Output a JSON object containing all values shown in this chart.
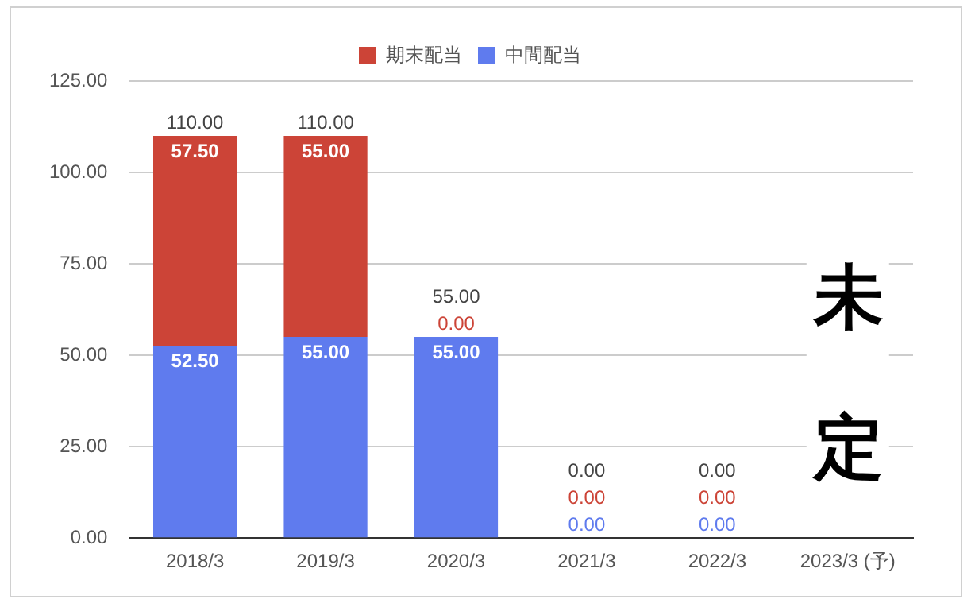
{
  "chart_data": {
    "type": "bar",
    "stacked": true,
    "categories": [
      "2018/3",
      "2019/3",
      "2020/3",
      "2021/3",
      "2022/3",
      "2023/3 (予)"
    ],
    "series": [
      {
        "name": "中間配当",
        "color": "#5f7bee",
        "values": [
          52.5,
          55,
          55,
          0,
          0,
          null
        ],
        "value_labels": [
          "52.50",
          "55.00",
          "55.00",
          "0.00",
          "0.00",
          null
        ]
      },
      {
        "name": "期末配当",
        "color": "#cc4437",
        "values": [
          57.5,
          55,
          0,
          0,
          0,
          null
        ],
        "value_labels": [
          "57.50",
          "55.00",
          "0.00",
          "0.00",
          "0.00",
          null
        ]
      }
    ],
    "totals": [
      "110.00",
      "110.00",
      "55.00",
      "0.00",
      "0.00",
      null
    ],
    "ylim": [
      0,
      125
    ],
    "yticks": [
      {
        "value": 0,
        "label": "0.00"
      },
      {
        "value": 25,
        "label": "25.00"
      },
      {
        "value": 50,
        "label": "50.00"
      },
      {
        "value": 75,
        "label": "75.00"
      },
      {
        "value": 100,
        "label": "100.00"
      },
      {
        "value": 125,
        "label": "125.00"
      }
    ],
    "grid": "y",
    "legend": "top",
    "annotations": [
      "未定"
    ]
  }
}
